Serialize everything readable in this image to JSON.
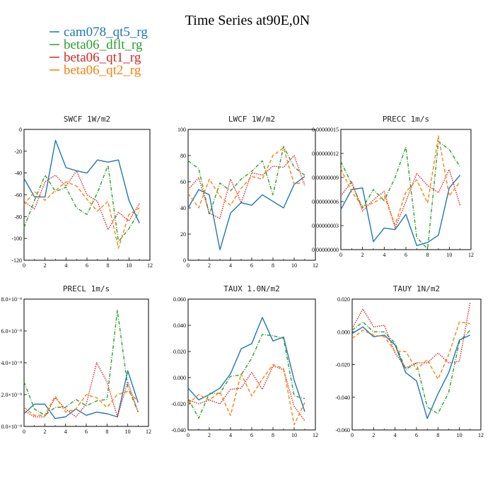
{
  "figure": {
    "title": "Time Series at90E,0N"
  },
  "legend": [
    {
      "name": "cam078_qt5_rg",
      "color": "#1f77b4",
      "dash": "solid"
    },
    {
      "name": "beta06_dflt_rg",
      "color": "#2ca02c",
      "dash": "dashdot"
    },
    {
      "name": "beta06_qt1_rg",
      "color": "#d62728",
      "dash": "dot"
    },
    {
      "name": "beta06_qt2_rg",
      "color": "#ff7f0e",
      "dash": "dash"
    }
  ],
  "chart_data": [
    {
      "type": "line",
      "title": "SWCF   1W/m2",
      "x": [
        0,
        1,
        2,
        3,
        4,
        5,
        6,
        7,
        8,
        9,
        10,
        11
      ],
      "xlim": [
        0,
        12
      ],
      "ylim": [
        -120,
        0
      ],
      "xticks": [
        "0",
        "2",
        "4",
        "6",
        "8",
        "10",
        "12"
      ],
      "yticks": [
        "-120",
        "-100",
        "-80",
        "-60",
        "-40",
        "-20",
        "0"
      ],
      "series": [
        {
          "name": "cam078_qt5_rg",
          "values": [
            -45,
            -62,
            -62,
            -10,
            -35,
            -38,
            -40,
            -28,
            -30,
            -28,
            -65,
            -86
          ]
        },
        {
          "name": "beta06_dflt_rg",
          "values": [
            -90,
            -65,
            -42,
            -57,
            -53,
            -72,
            -78,
            -58,
            -33,
            -103,
            -91,
            -75
          ]
        },
        {
          "name": "beta06_qt1_rg",
          "values": [
            -66,
            -73,
            -48,
            -42,
            -52,
            -38,
            -60,
            -66,
            -92,
            -76,
            -84,
            -68
          ]
        },
        {
          "name": "beta06_qt2_rg",
          "values": [
            -69,
            -57,
            -65,
            -56,
            -48,
            -52,
            -64,
            -75,
            -66,
            -109,
            -78,
            -72
          ]
        }
      ]
    },
    {
      "type": "line",
      "title": "LWCF   1W/m2",
      "x": [
        0,
        1,
        2,
        3,
        4,
        5,
        6,
        7,
        8,
        9,
        10,
        11
      ],
      "xlim": [
        0,
        12
      ],
      "ylim": [
        0,
        100
      ],
      "xticks": [
        "0",
        "2",
        "4",
        "6",
        "8",
        "10",
        "12"
      ],
      "yticks": [
        "0",
        "20",
        "40",
        "60",
        "80",
        "100"
      ],
      "series": [
        {
          "name": "cam078_qt5_rg",
          "values": [
            40,
            54,
            50,
            8,
            36,
            44,
            42,
            50,
            45,
            40,
            58,
            64
          ]
        },
        {
          "name": "beta06_dflt_rg",
          "values": [
            76,
            70,
            35,
            59,
            53,
            62,
            68,
            76,
            50,
            87,
            71,
            65
          ]
        },
        {
          "name": "beta06_qt1_rg",
          "values": [
            54,
            63,
            36,
            32,
            62,
            44,
            67,
            65,
            72,
            71,
            80,
            57
          ]
        },
        {
          "name": "beta06_qt2_rg",
          "values": [
            51,
            40,
            62,
            49,
            42,
            55,
            64,
            62,
            80,
            86,
            58,
            60
          ]
        }
      ]
    },
    {
      "type": "line",
      "title": "PRECC   1m/s",
      "x": [
        0,
        1,
        2,
        3,
        4,
        5,
        6,
        7,
        8,
        9,
        10,
        11
      ],
      "xlim": [
        0,
        12
      ],
      "ylim": [
        0,
        1.5e-07
      ],
      "xticks": [
        "0",
        "2",
        "4",
        "6",
        "8",
        "10",
        "12"
      ],
      "yticks": [
        "0.00000000",
        "0.00000003",
        "0.00000006",
        "0.00000009",
        "0.00000012",
        "0.00000015"
      ],
      "series": [
        {
          "name": "cam078_qt5_rg",
          "values": [
            5e-08,
            7.5e-08,
            7.7e-08,
            1e-08,
            2.7e-08,
            2.5e-08,
            4.4e-08,
            5e-09,
            9e-09,
            1.8e-08,
            7.7e-08,
            9.3e-08
          ]
        },
        {
          "name": "beta06_dflt_rg",
          "values": [
            1.1e-07,
            8.2e-08,
            5.2e-08,
            7.5e-08,
            6.1e-08,
            9e-08,
            1.28e-07,
            1.5e-08,
            1e-09,
            1.35e-07,
            1.25e-07,
            1.03e-07
          ]
        },
        {
          "name": "beta06_qt1_rg",
          "values": [
            6.7e-08,
            8.5e-08,
            4.8e-08,
            6.2e-08,
            7.3e-08,
            2.7e-08,
            6e-08,
            9.5e-08,
            8e-08,
            7.1e-08,
            1e-07,
            5.5e-08
          ]
        },
        {
          "name": "beta06_qt2_rg",
          "values": [
            1.01e-07,
            7.2e-08,
            5.4e-08,
            5.8e-08,
            6.7e-08,
            3.1e-08,
            7.2e-08,
            8.7e-08,
            5.8e-08,
            1.42e-07,
            6.7e-08,
            8.5e-08
          ]
        }
      ]
    },
    {
      "type": "line",
      "title": "PRECL   1m/s",
      "x": [
        0,
        1,
        2,
        3,
        4,
        5,
        6,
        7,
        8,
        9,
        10,
        11
      ],
      "xlim": [
        0,
        12
      ],
      "ylim": [
        0,
        8
      ],
      "xticks": [
        "0",
        "2",
        "4",
        "6",
        "8",
        "10",
        "12"
      ],
      "yticks": [
        "0.0×10⁻⁸",
        "2.0×10⁻⁸",
        "4.0×10⁻⁸",
        "6.0×10⁻⁸",
        "8.0×10⁻⁸"
      ],
      "series": [
        {
          "name": "cam078_qt5_rg",
          "values": [
            0.8,
            1.4,
            1.4,
            0.5,
            0.6,
            1.1,
            0.7,
            0.9,
            0.8,
            0.6,
            3.5,
            1.5
          ]
        },
        {
          "name": "beta06_dflt_rg",
          "values": [
            2.8,
            1.1,
            0.7,
            1.2,
            1.2,
            1.7,
            1.3,
            1.6,
            1.7,
            7.3,
            2.5,
            0.9
          ]
        },
        {
          "name": "beta06_qt1_rg",
          "values": [
            1.0,
            0.6,
            0.6,
            1.8,
            1.1,
            0.6,
            1.4,
            4.0,
            2.8,
            0.6,
            2.8,
            0.9
          ]
        },
        {
          "name": "beta06_qt2_rg",
          "values": [
            1.2,
            0.7,
            0.7,
            1.9,
            0.9,
            1.1,
            2.0,
            1.8,
            1.2,
            2.0,
            2.2,
            1.6
          ]
        }
      ]
    },
    {
      "type": "line",
      "title": "TAUX   1.0N/m2",
      "x": [
        0,
        1,
        2,
        3,
        4,
        5,
        6,
        7,
        8,
        9,
        10,
        11
      ],
      "xlim": [
        0,
        12
      ],
      "ylim": [
        -0.04,
        0.06
      ],
      "xticks": [
        "0",
        "2",
        "4",
        "6",
        "8",
        "10",
        "12"
      ],
      "yticks": [
        "-0.040",
        "-0.020",
        "0.000",
        "0.020",
        "0.040",
        "0.060"
      ],
      "series": [
        {
          "name": "cam078_qt5_rg",
          "values": [
            -0.008,
            -0.017,
            -0.013,
            -0.008,
            0.003,
            0.022,
            0.026,
            0.046,
            0.028,
            0.031,
            -0.002,
            -0.026
          ]
        },
        {
          "name": "beta06_dflt_rg",
          "values": [
            -0.016,
            -0.031,
            -0.012,
            -0.012,
            0.001,
            0.002,
            0.015,
            0.033,
            0.032,
            0.03,
            -0.014,
            -0.016
          ]
        },
        {
          "name": "beta06_qt1_rg",
          "values": [
            -0.017,
            -0.02,
            -0.017,
            -0.02,
            -0.009,
            -0.008,
            0.004,
            -0.009,
            0.009,
            0.006,
            -0.022,
            -0.033
          ]
        },
        {
          "name": "beta06_qt2_rg",
          "values": [
            -0.02,
            -0.013,
            -0.017,
            -0.011,
            -0.029,
            0.003,
            -0.014,
            -0.001,
            0.01,
            0.007,
            -0.036,
            -0.019
          ]
        }
      ]
    },
    {
      "type": "line",
      "title": "TAUY   1N/m2",
      "x": [
        0,
        1,
        2,
        3,
        4,
        5,
        6,
        7,
        8,
        9,
        10,
        11
      ],
      "xlim": [
        0,
        12
      ],
      "ylim": [
        -0.06,
        0.02
      ],
      "xticks": [
        "0",
        "2",
        "4",
        "6",
        "8",
        "10",
        "12"
      ],
      "yticks": [
        "-0.060",
        "-0.040",
        "-0.020",
        "0.000",
        "0.020"
      ],
      "series": [
        {
          "name": "cam078_qt5_rg",
          "values": [
            -0.001,
            0.003,
            -0.003,
            -0.002,
            -0.008,
            -0.025,
            -0.03,
            -0.053,
            -0.038,
            -0.025,
            -0.005,
            -0.002
          ]
        },
        {
          "name": "beta06_dflt_rg",
          "values": [
            0.001,
            0.006,
            0.0,
            0.0,
            -0.007,
            -0.023,
            -0.019,
            -0.046,
            -0.05,
            -0.037,
            -0.006,
            0.001
          ]
        },
        {
          "name": "beta06_qt1_rg",
          "values": [
            0.002,
            0.014,
            0.003,
            0.004,
            -0.013,
            -0.022,
            -0.019,
            -0.019,
            -0.013,
            -0.019,
            -0.018,
            0.018
          ]
        },
        {
          "name": "beta06_qt2_rg",
          "values": [
            -0.004,
            0.001,
            -0.002,
            -0.003,
            -0.012,
            -0.012,
            -0.023,
            -0.017,
            -0.029,
            -0.014,
            0.006,
            0.005
          ]
        }
      ]
    }
  ]
}
